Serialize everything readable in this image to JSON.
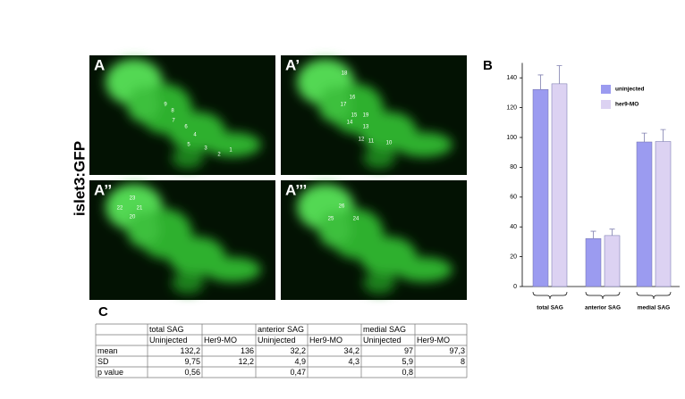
{
  "y_label": "islet3:GFP",
  "panels": [
    {
      "label": "A",
      "numbers": [
        "1",
        "2",
        "3",
        "4",
        "5",
        "6",
        "7",
        "8",
        "9"
      ]
    },
    {
      "label": "A’",
      "numbers": [
        "18",
        "16",
        "17",
        "15",
        "19",
        "14",
        "13",
        "12",
        "11",
        "10"
      ]
    },
    {
      "label": "A’’",
      "numbers": [
        "23",
        "22",
        "21",
        "20"
      ]
    },
    {
      "label": "A’’’",
      "numbers": [
        "26",
        "25",
        "24"
      ]
    }
  ],
  "chart_label": "B",
  "chart_data": {
    "type": "bar",
    "categories": [
      "total SAG",
      "anterior SAG",
      "medial SAG"
    ],
    "series": [
      {
        "name": "uninjected",
        "color": "#9b9bf0",
        "values": [
          132.2,
          32.2,
          97
        ],
        "errors": [
          9.75,
          4.9,
          5.9
        ]
      },
      {
        "name": "her9-MO",
        "color": "#dcd2f2",
        "values": [
          136,
          34.2,
          97.3
        ],
        "errors": [
          12.2,
          4.3,
          8
        ]
      }
    ],
    "ylim": [
      0,
      150
    ],
    "yticks": [
      0,
      20,
      40,
      60,
      80,
      100,
      120,
      140
    ],
    "grid": false,
    "legend": "upper right"
  },
  "table_label": "C",
  "table": {
    "groups": [
      "total SAG",
      "anterior SAG",
      "medial SAG"
    ],
    "subheaders": [
      "Uninjected",
      "Her9-MO",
      "Uninjected",
      "Her9-MO",
      "Uninjected",
      "Her9-MO"
    ],
    "rows": [
      {
        "label": "mean",
        "cells": [
          "132,2",
          "136",
          "32,2",
          "34,2",
          "97",
          "97,3"
        ]
      },
      {
        "label": "SD",
        "cells": [
          "9,75",
          "12,2",
          "4,9",
          "4,3",
          "5,9",
          "8"
        ]
      },
      {
        "label": "p value",
        "cells": [
          "0,56",
          "0,47",
          "0,8"
        ]
      }
    ]
  }
}
